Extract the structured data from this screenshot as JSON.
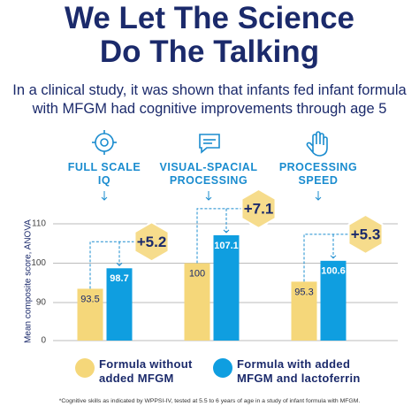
{
  "chart_data": {
    "type": "bar",
    "title": [
      "We Let The Science",
      "Do The Talking"
    ],
    "subtitle": [
      "In a clinical study, it was shown that infants fed infant formula",
      "with MFGM had cognitive improvements through age 5"
    ],
    "categories": [
      "FULL SCALE IQ",
      "VISUAL-SPACIAL PROCESSING",
      "PROCESSING SPEED"
    ],
    "y_label": "Mean composite score, ANOVA",
    "series": [
      {
        "name": "Formula without added MFGM",
        "color": "#f5d77a",
        "values": [
          93.5,
          100,
          95.3
        ]
      },
      {
        "name": "Formula with added MFGM and lactoferrin",
        "color": "#0f9ee0",
        "values": [
          98.7,
          107.1,
          100.6
        ]
      }
    ],
    "differences": [
      5.2,
      7.1,
      5.3
    ],
    "difference_labels": [
      "+5.2",
      "+7.1",
      "+5.3"
    ],
    "ylim": [
      0,
      110
    ],
    "yticks": [
      0,
      90,
      100,
      110
    ],
    "grid": true,
    "footnote": "*Cognitive skills as indicated by WPPSI-IV, tested at 5.5 to 6 years of age in a study of infant formula with MFGM."
  }
}
